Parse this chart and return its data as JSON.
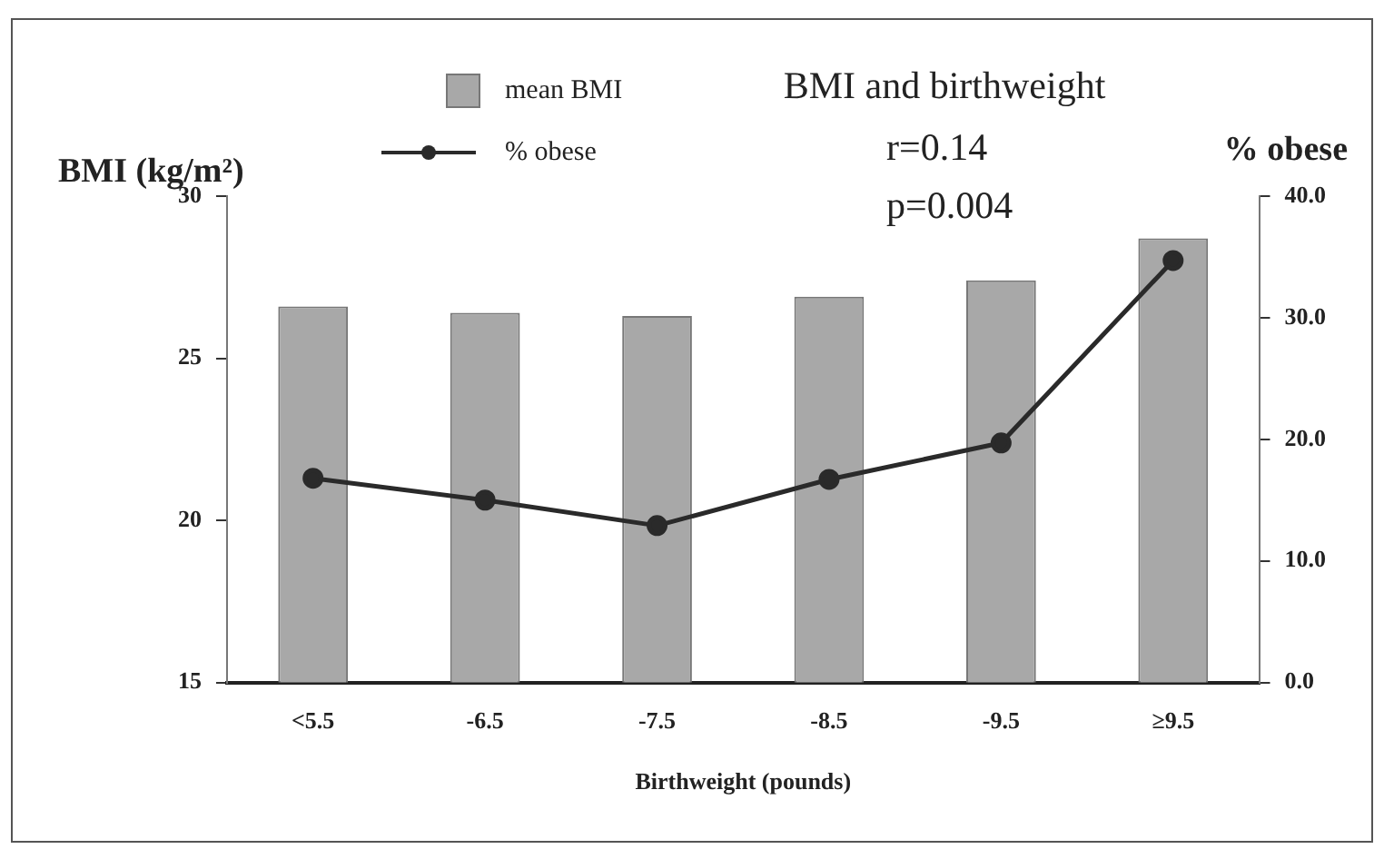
{
  "chart_data": {
    "type": "bar",
    "title": "BMI and birthweight",
    "xlabel": "Birthweight (pounds)",
    "ylabel": "BMI (kg/m²)",
    "y2label": "% obese",
    "categories": [
      "<5.5",
      "-6.5",
      "-7.5",
      "-8.5",
      "-9.5",
      "≥9.5"
    ],
    "series": [
      {
        "name": "mean BMI",
        "color": "#a8a8a8",
        "values": [
          26.6,
          26.4,
          26.3,
          26.9,
          27.4,
          28.7
        ]
      },
      {
        "name": "% obese",
        "type": "line",
        "axis": "y2",
        "color": "#2a2a2a",
        "values": [
          16.8,
          15.0,
          12.9,
          16.7,
          19.7,
          34.7
        ]
      }
    ],
    "ylim": [
      15,
      30
    ],
    "yticks": [
      15,
      20,
      25,
      30
    ],
    "y2lim": [
      0,
      40
    ],
    "y2ticks": [
      {
        "value": 0,
        "label": "0.0"
      },
      {
        "value": 10,
        "label": "10.0"
      },
      {
        "value": 20,
        "label": "20.0"
      },
      {
        "value": 30,
        "label": "30.0"
      },
      {
        "value": 40,
        "label": "40.0"
      }
    ],
    "annotations": [
      "r=0.14",
      "p=0.004"
    ],
    "legend": "top",
    "marker": "circle",
    "grid": false
  }
}
